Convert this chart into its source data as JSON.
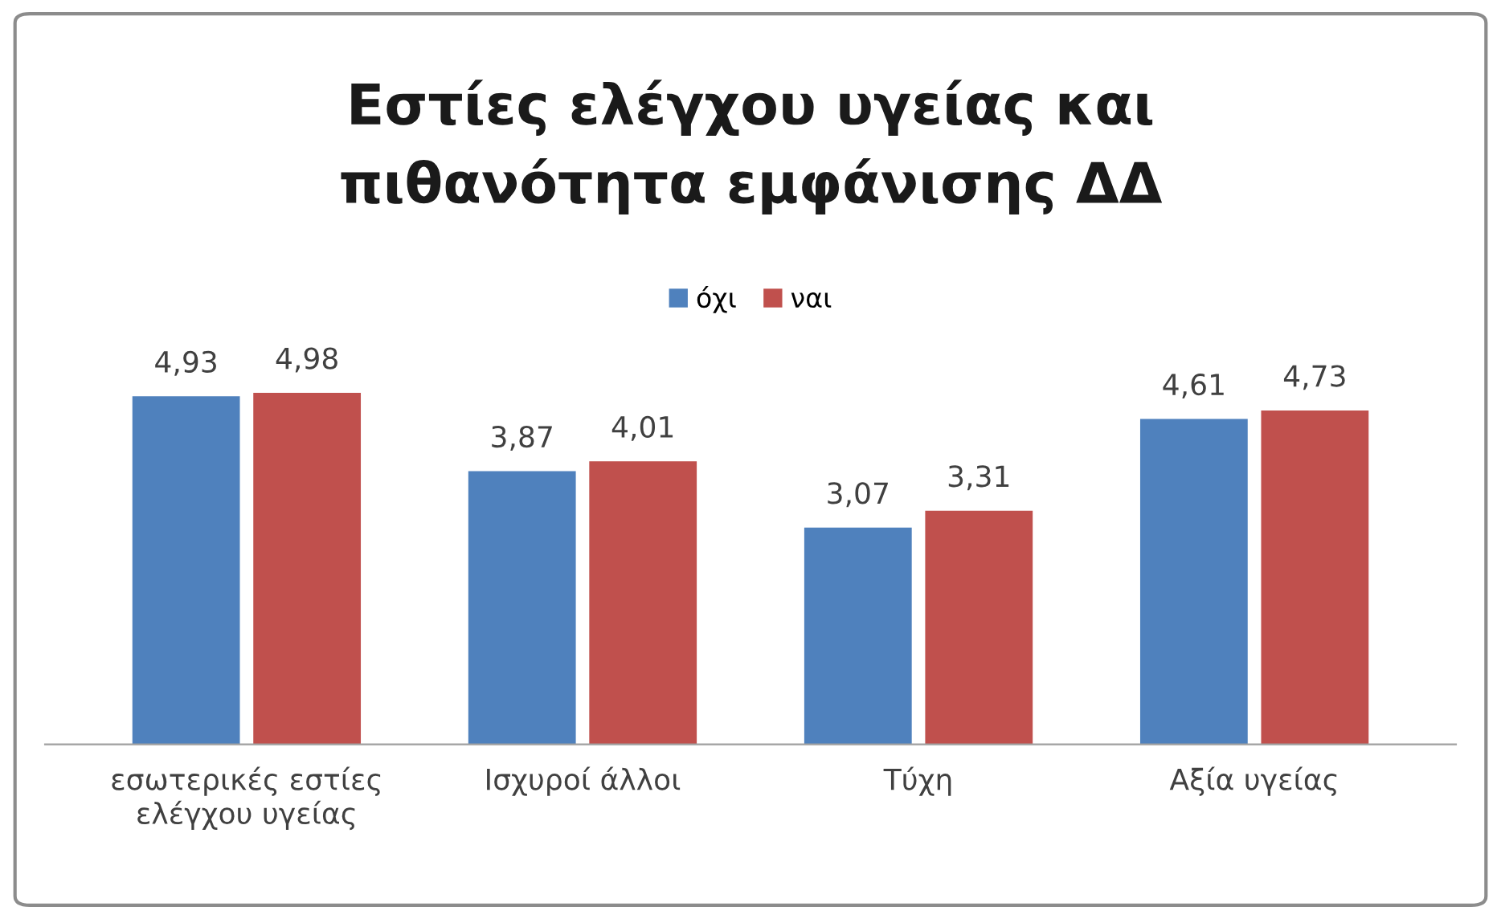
{
  "chart_data": {
    "type": "bar",
    "title": "Εστίες ελέγχου υγείας και\nπιθανότητα εμφάνισης ΔΔ",
    "categories": [
      "εσωτερικές εστίες\nελέγχου υγείας",
      "Ισχυροί άλλοι",
      "Τύχη",
      "Αξία υγείας"
    ],
    "series": [
      {
        "name": "όχι",
        "color": "#4f81bd",
        "values": [
          4.93,
          3.87,
          3.07,
          4.61
        ],
        "value_labels": [
          "4,93",
          "3,87",
          "3,07",
          "4,61"
        ]
      },
      {
        "name": "ναι",
        "color": "#c0504d",
        "values": [
          4.98,
          4.01,
          3.31,
          4.73
        ],
        "value_labels": [
          "4,98",
          "4,01",
          "3,31",
          "4,73"
        ]
      }
    ],
    "legend": "top",
    "grid": false
  }
}
